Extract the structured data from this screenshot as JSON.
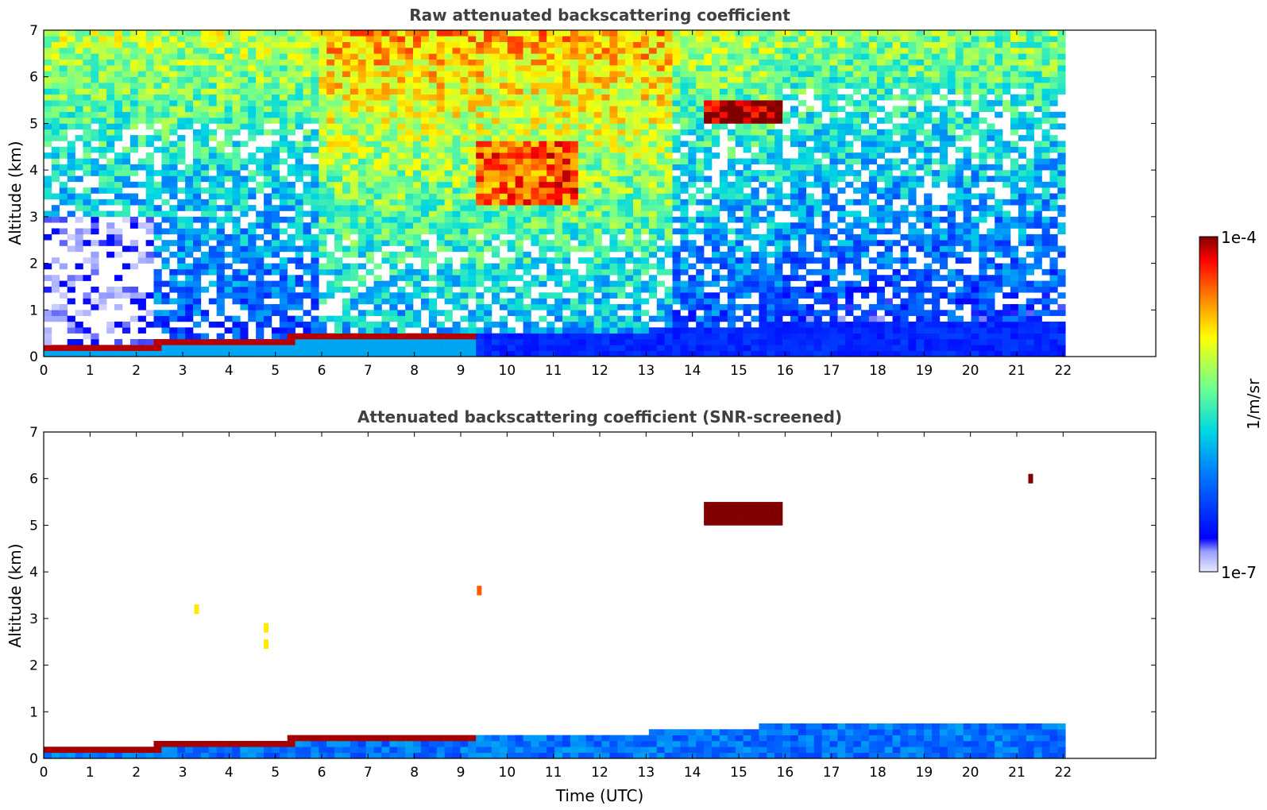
{
  "figure": {
    "colorbar": {
      "label": "1/m/sr",
      "max_label": "1e-4",
      "min_label": "1e-7",
      "scale": "log",
      "range": [
        1e-07,
        0.0001
      ],
      "colormap": "jet"
    }
  },
  "chart_data": [
    {
      "type": "heatmap",
      "title": "Raw attenuated backscattering coefficient",
      "xlabel": "",
      "ylabel": "Altitude (km)",
      "xlim": [
        0,
        24
      ],
      "ylim": [
        0,
        7
      ],
      "x_ticks": [
        0,
        1,
        2,
        3,
        4,
        5,
        6,
        7,
        8,
        9,
        10,
        11,
        12,
        13,
        14,
        15,
        16,
        17,
        18,
        19,
        20,
        21,
        22
      ],
      "y_ticks": [
        0,
        1,
        2,
        3,
        4,
        5,
        6,
        7
      ],
      "data_extent_x": [
        0,
        22.05
      ],
      "grid": false,
      "value_units": "1/m/sr",
      "features": [
        {
          "desc": "boundary layer aerosol top",
          "x": [
            0,
            2.3,
            2.5,
            4.5,
            6.3,
            8.0,
            9.3
          ],
          "y": [
            0.2,
            0.2,
            0.3,
            0.3,
            0.55,
            0.55,
            0.5
          ],
          "level": 0.0001
        },
        {
          "desc": "cloud",
          "x_start": 14.3,
          "x_end": 16.0,
          "altitude": 5.25,
          "level": 0.0001
        },
        {
          "desc": "elevated layer",
          "x_start": 9.3,
          "x_end": 11.5,
          "altitude_start": 3.5,
          "altitude_end": 4.5,
          "level": 3e-05
        }
      ]
    },
    {
      "type": "heatmap",
      "title": "Attenuated backscattering coefficient (SNR-screened)",
      "xlabel": "Time (UTC)",
      "ylabel": "Altitude (km)",
      "xlim": [
        0,
        24
      ],
      "ylim": [
        0,
        7
      ],
      "x_ticks": [
        0,
        1,
        2,
        3,
        4,
        5,
        6,
        7,
        8,
        9,
        10,
        11,
        12,
        13,
        14,
        15,
        16,
        17,
        18,
        19,
        20,
        21,
        22
      ],
      "y_ticks": [
        0,
        1,
        2,
        3,
        4,
        5,
        6,
        7
      ],
      "data_extent_x": [
        0,
        22.05
      ],
      "grid": false,
      "value_units": "1/m/sr",
      "features": [
        {
          "desc": "boundary layer",
          "x": [
            0,
            2.3,
            2.5,
            4.5,
            6.3,
            8.0,
            9.3,
            12,
            14,
            16,
            22
          ],
          "y": [
            0.3,
            0.3,
            0.4,
            0.4,
            0.6,
            0.6,
            0.5,
            0.5,
            0.7,
            0.7,
            0.8
          ]
        },
        {
          "desc": "cloud",
          "x_start": 14.3,
          "x_end": 16.0,
          "altitude": 5.25
        },
        {
          "desc": "aerosol patches",
          "points": [
            [
              3.3,
              3.2
            ],
            [
              4.8,
              2.8
            ],
            [
              4.8,
              2.45
            ],
            [
              9.4,
              3.6
            ],
            [
              21.3,
              6.0
            ]
          ]
        }
      ]
    }
  ]
}
